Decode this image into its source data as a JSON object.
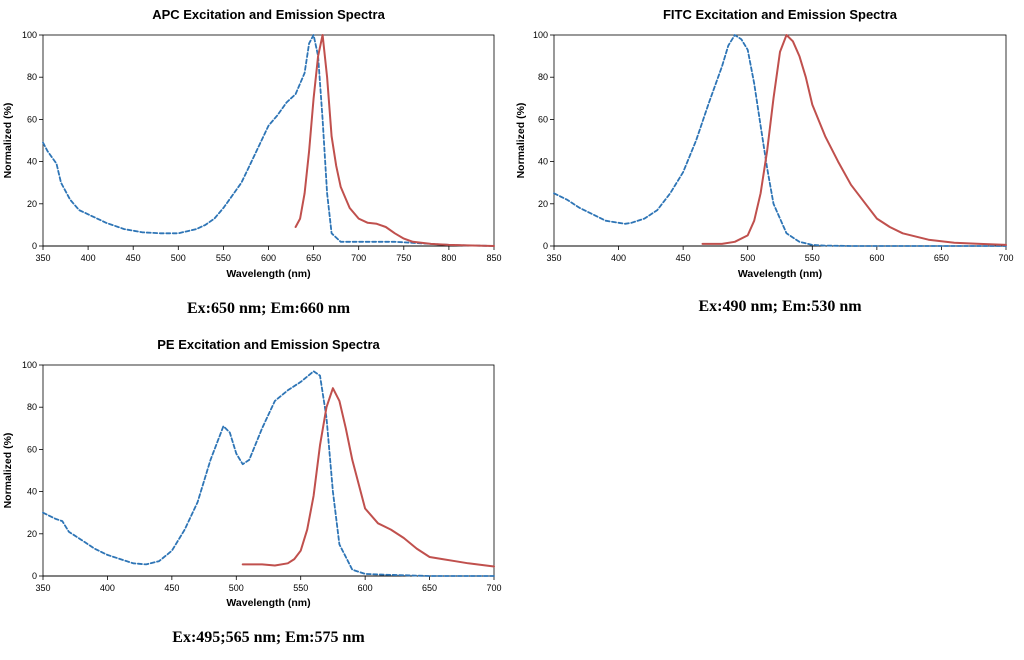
{
  "chart_data": [
    {
      "type": "line",
      "title": "APC Excitation and Emission Spectra",
      "xlabel": "Wavelength (nm)",
      "ylabel": "Normalized (%)",
      "xlim": [
        350,
        850
      ],
      "ylim": [
        0,
        100
      ],
      "xticks": [
        350,
        400,
        450,
        500,
        550,
        600,
        650,
        700,
        750,
        800,
        850
      ],
      "yticks": [
        0,
        20,
        40,
        60,
        80,
        100
      ],
      "caption": "Ex:650 nm; Em:660 nm",
      "series": [
        {
          "style": "excitation",
          "color": "#2E75B6",
          "dash": true,
          "x": [
            350,
            355,
            360,
            365,
            370,
            380,
            390,
            400,
            420,
            440,
            460,
            480,
            500,
            510,
            520,
            530,
            540,
            550,
            560,
            570,
            580,
            590,
            600,
            610,
            620,
            630,
            640,
            645,
            650,
            655,
            660,
            665,
            670,
            680,
            700,
            720,
            740,
            760,
            780,
            800,
            820,
            850
          ],
          "y": [
            49,
            45,
            42,
            39,
            30,
            22,
            17,
            15,
            11,
            8,
            6.5,
            6,
            6,
            7,
            8,
            10,
            13,
            18,
            24,
            30,
            39,
            48,
            57,
            62,
            68,
            72,
            82,
            96,
            100,
            90,
            60,
            25,
            6,
            2,
            2,
            2,
            2,
            1.5,
            1,
            0.5,
            0.3,
            0
          ]
        },
        {
          "style": "emission",
          "color": "#C0504D",
          "dash": false,
          "x": [
            630,
            635,
            640,
            645,
            650,
            655,
            660,
            665,
            670,
            675,
            680,
            685,
            690,
            700,
            710,
            720,
            730,
            740,
            750,
            760,
            780,
            800,
            820,
            850
          ],
          "y": [
            9,
            13,
            25,
            45,
            70,
            90,
            100,
            80,
            52,
            38,
            28,
            23,
            18,
            13,
            11,
            10.5,
            9,
            6,
            3.5,
            2,
            1,
            0.5,
            0.3,
            0
          ]
        }
      ]
    },
    {
      "type": "line",
      "title": "FITC Excitation and Emission Spectra",
      "xlabel": "Wavelength (nm)",
      "ylabel": "Normalized (%)",
      "xlim": [
        350,
        700
      ],
      "ylim": [
        0,
        100
      ],
      "xticks": [
        350,
        400,
        450,
        500,
        550,
        600,
        650,
        700
      ],
      "yticks": [
        0,
        20,
        40,
        60,
        80,
        100
      ],
      "caption": "Ex:490 nm; Em:530 nm",
      "series": [
        {
          "style": "excitation",
          "color": "#2E75B6",
          "dash": true,
          "x": [
            350,
            360,
            370,
            380,
            390,
            400,
            405,
            410,
            420,
            430,
            440,
            450,
            460,
            470,
            480,
            485,
            490,
            495,
            500,
            505,
            510,
            515,
            520,
            530,
            540,
            550,
            560,
            580,
            600,
            650,
            700
          ],
          "y": [
            25,
            22,
            18,
            15,
            12,
            11,
            10.5,
            11,
            13,
            17,
            25,
            35,
            50,
            68,
            85,
            95,
            100,
            98,
            93,
            77,
            57,
            37,
            20,
            6,
            2,
            0.5,
            0.2,
            0,
            0,
            0,
            0
          ],
          "x_note": ""
        },
        {
          "style": "emission",
          "color": "#C0504D",
          "dash": false,
          "x": [
            465,
            470,
            480,
            490,
            500,
            505,
            510,
            515,
            520,
            525,
            530,
            535,
            540,
            545,
            550,
            560,
            570,
            580,
            590,
            600,
            610,
            620,
            640,
            660,
            680,
            700
          ],
          "y": [
            1,
            1,
            1,
            2,
            5,
            12,
            25,
            45,
            70,
            92,
            100,
            97,
            90,
            80,
            67,
            52,
            40,
            29,
            21,
            13,
            9,
            6,
            3,
            1.5,
            1,
            0.5
          ]
        }
      ]
    },
    {
      "type": "line",
      "title": "PE Excitation and Emission Spectra",
      "xlabel": "Wavelength (nm)",
      "ylabel": "Normalized (%)",
      "xlim": [
        350,
        700
      ],
      "ylim": [
        0,
        100
      ],
      "xticks": [
        350,
        400,
        450,
        500,
        550,
        600,
        650,
        700
      ],
      "yticks": [
        0,
        20,
        40,
        60,
        80,
        100
      ],
      "caption": "Ex:495;565 nm; Em:575 nm",
      "series": [
        {
          "style": "excitation",
          "color": "#2E75B6",
          "dash": true,
          "x": [
            350,
            360,
            365,
            370,
            380,
            390,
            400,
            410,
            420,
            430,
            440,
            450,
            460,
            470,
            480,
            490,
            495,
            500,
            505,
            510,
            520,
            530,
            540,
            550,
            560,
            565,
            570,
            575,
            580,
            590,
            600,
            620,
            650,
            700
          ],
          "y": [
            30,
            27,
            26,
            21,
            17,
            13,
            10,
            8,
            6,
            5.5,
            7,
            12,
            22,
            35,
            55,
            71,
            68,
            58,
            53,
            55,
            70,
            83,
            88,
            92,
            97,
            95,
            75,
            40,
            15,
            3,
            1,
            0.5,
            0,
            0
          ]
        },
        {
          "style": "emission",
          "color": "#C0504D",
          "dash": false,
          "x": [
            505,
            520,
            530,
            540,
            545,
            550,
            555,
            560,
            565,
            570,
            575,
            580,
            585,
            590,
            600,
            610,
            620,
            630,
            640,
            650,
            660,
            670,
            680,
            700
          ],
          "y": [
            5.5,
            5.5,
            5,
            6,
            8,
            12,
            22,
            38,
            62,
            80,
            89,
            83,
            70,
            55,
            32,
            25,
            22,
            18,
            13,
            9,
            8,
            7,
            6,
            4.5
          ]
        }
      ]
    }
  ]
}
